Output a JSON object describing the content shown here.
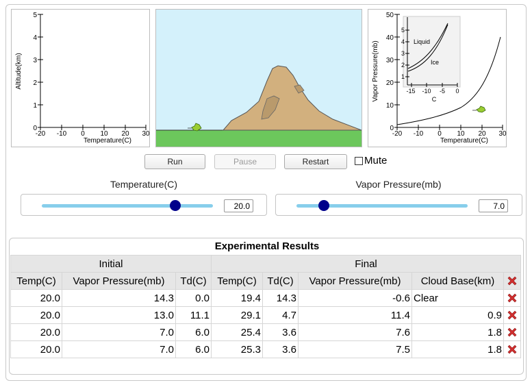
{
  "altitude_chart": {
    "ylabel": "Altitude(km)",
    "xlabel": "Temperature(C)",
    "y_ticks": [
      "0",
      "1",
      "2",
      "3",
      "4",
      "5"
    ],
    "x_ticks": [
      "-20",
      "-10",
      "0",
      "10",
      "20",
      "30"
    ]
  },
  "vapor_chart": {
    "ylabel": "Vapor Pressure(mb)",
    "xlabel": "Temperature(C)",
    "y_ticks": [
      "0",
      "10",
      "20",
      "30",
      "40",
      "50"
    ],
    "x_ticks": [
      "-20",
      "-10",
      "0",
      "10",
      "20",
      "30"
    ],
    "inset": {
      "xlabel": "C",
      "y_ticks": [
        "1",
        "2",
        "3",
        "4",
        "5"
      ],
      "x_ticks": [
        "-15",
        "-10",
        "-5",
        "0"
      ],
      "liquid_label": "Liquid",
      "ice_label": "Ice"
    }
  },
  "controls": {
    "run_label": "Run",
    "pause_label": "Pause",
    "restart_label": "Restart",
    "mute_label": "Mute"
  },
  "sliders": {
    "temperature": {
      "label": "Temperature(C)",
      "value": "20.0",
      "fraction": 0.78
    },
    "vapor": {
      "label": "Vapor Pressure(mb)",
      "value": "7.0",
      "fraction": 0.16
    }
  },
  "results": {
    "title": "Experimental Results",
    "group_initial": "Initial",
    "group_final": "Final",
    "headers": [
      "Temp(C)",
      "Vapor Pressure(mb)",
      "Td(C)",
      "Temp(C)",
      "Td(C)",
      "Vapor Pressure(mb)",
      "Cloud Base(km)"
    ],
    "rows": [
      [
        "20.0",
        "14.3",
        "0.0",
        "19.4",
        "14.3",
        "-0.6",
        "Clear"
      ],
      [
        "20.0",
        "13.0",
        "11.1",
        "29.1",
        "4.7",
        "11.4",
        "0.9"
      ],
      [
        "20.0",
        "7.0",
        "6.0",
        "25.4",
        "3.6",
        "7.6",
        "1.8"
      ],
      [
        "20.0",
        "7.0",
        "6.0",
        "25.3",
        "3.6",
        "7.5",
        "1.8"
      ]
    ]
  },
  "colors": {
    "sky": "#d4f1fb",
    "grass": "#6cc75c",
    "mountain": "#d2b07e",
    "slider_track": "#87ceeb",
    "slider_thumb": "#00008b",
    "delete_red": "#d32f2f"
  },
  "icons": [
    "delete-icon",
    "air-parcel-icon"
  ]
}
